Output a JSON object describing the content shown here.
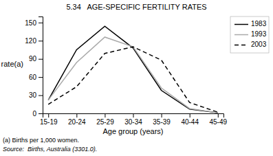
{
  "chart_data": {
    "type": "line",
    "title": "5.34   AGE-SPECIFIC FERTILITY RATES",
    "x_label": "Age group (years)",
    "y_label": "rate(a)",
    "annotations": [
      "(a) Births per 1,000 women.",
      "Source:  Births, Australia (3301.0)."
    ],
    "categories": [
      "15-19",
      "20-24",
      "25-29",
      "30-34",
      "35-39",
      "40-44",
      "45-49"
    ],
    "series": [
      {
        "name": "1983",
        "color": "#000000",
        "line_style": "solid",
        "values": [
          22,
          105,
          144,
          108,
          38,
          7,
          1
        ]
      },
      {
        "name": "1993",
        "color": "#aaaaaa",
        "line_style": "solid",
        "values": [
          22,
          84,
          126,
          110,
          42,
          8,
          1
        ]
      },
      {
        "name": "2003",
        "color": "#000000",
        "line_style": "dashed",
        "values": [
          15,
          44,
          99,
          110,
          88,
          18,
          2
        ]
      }
    ],
    "ylim": [
      0,
      160
    ],
    "yticks": [
      0,
      30,
      60,
      90,
      120,
      150
    ],
    "grid": false,
    "legend": "right"
  }
}
